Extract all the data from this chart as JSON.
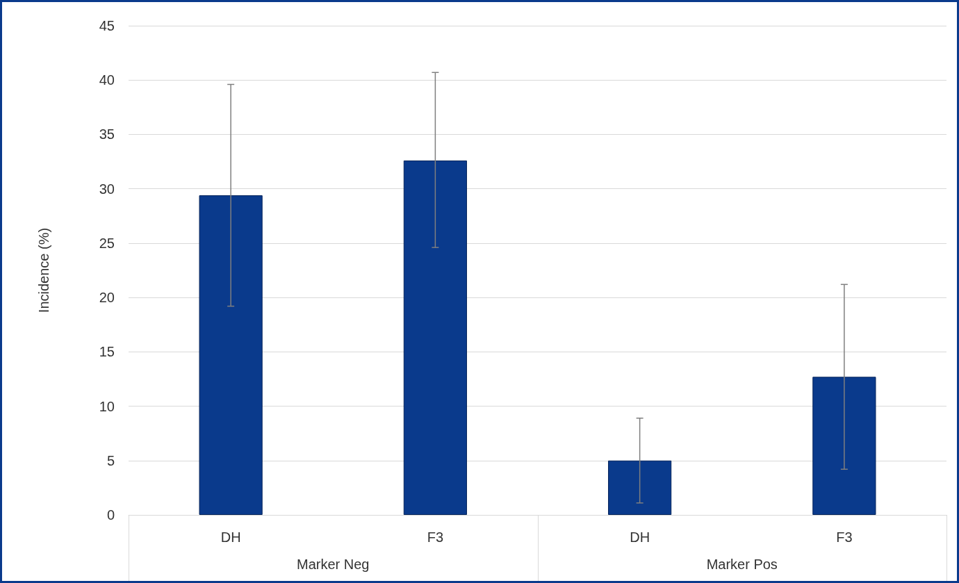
{
  "chart_data": {
    "type": "bar",
    "ylabel": "Incidence (%)",
    "categories": [
      "DH",
      "F3",
      "DH",
      "F3"
    ],
    "values": [
      29.4,
      32.6,
      5.0,
      12.7
    ],
    "errors": [
      [
        19.2,
        39.6
      ],
      [
        24.6,
        40.7
      ],
      [
        1.1,
        8.9
      ],
      [
        4.2,
        21.2
      ]
    ],
    "color": "#0a3a8c",
    "ylim": [
      0,
      45
    ],
    "yticks": [
      0,
      5,
      10,
      15,
      20,
      25,
      30,
      35,
      40,
      45
    ],
    "grid": "y",
    "annotations": [
      "Marker Neg",
      "Marker Pos"
    ]
  }
}
